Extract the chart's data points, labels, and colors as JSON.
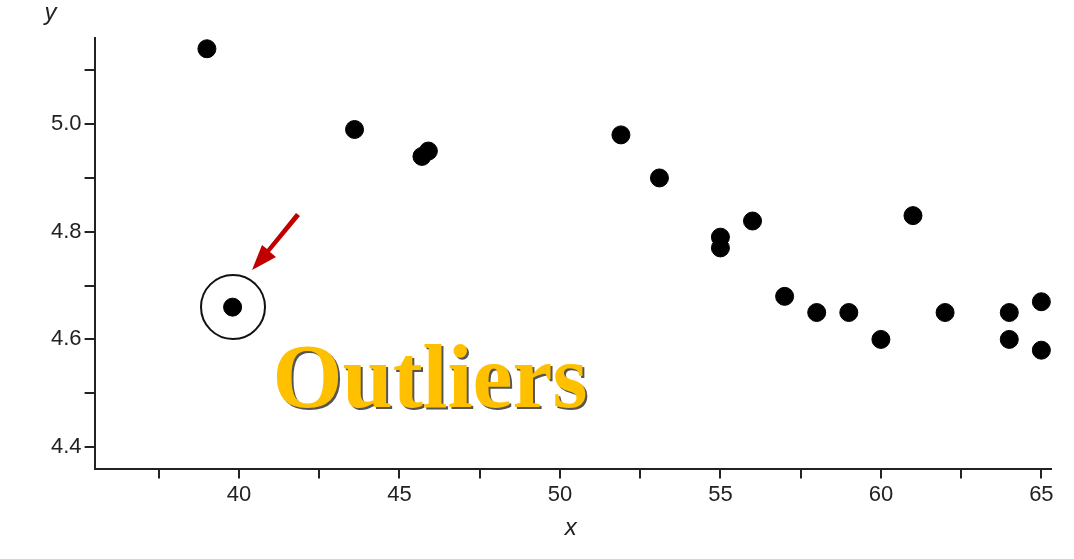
{
  "chart_data": {
    "type": "scatter",
    "xlabel": "x",
    "ylabel": "y",
    "x": [
      39,
      43.6,
      45.7,
      45.9,
      51.9,
      53.1,
      55,
      55,
      56,
      57,
      58,
      59,
      60,
      61,
      62,
      64,
      64,
      65,
      65,
      39.8
    ],
    "values": [
      5.14,
      4.99,
      4.94,
      4.95,
      4.98,
      4.9,
      4.79,
      4.77,
      4.82,
      4.68,
      4.65,
      4.65,
      4.6,
      4.83,
      4.65,
      4.65,
      4.6,
      4.67,
      4.58,
      4.66
    ],
    "color": "#000000",
    "marker": "circle",
    "grid": false,
    "xlim": [
      35.5,
      65.3
    ],
    "ylim": [
      4.36,
      5.16
    ],
    "xticks": [
      {
        "value": 37.5,
        "label": null
      },
      40,
      {
        "value": 42.5,
        "label": null
      },
      45,
      {
        "value": 47.5,
        "label": null
      },
      50,
      {
        "value": 52.5,
        "label": null
      },
      55,
      {
        "value": 57.5,
        "label": null
      },
      60,
      {
        "value": 62.5,
        "label": null
      },
      65
    ],
    "yticks": [
      {
        "value": 4.4,
        "label": "4.4"
      },
      {
        "value": 4.5,
        "label": null
      },
      {
        "value": 4.6,
        "label": "4.6"
      },
      {
        "value": 4.7,
        "label": null
      },
      {
        "value": 4.8,
        "label": "4.8"
      },
      {
        "value": 4.9,
        "label": null
      },
      {
        "value": 5.0,
        "label": "5.0"
      },
      {
        "value": 5.1,
        "label": null
      }
    ],
    "annotations": [
      {
        "text": "Outliers",
        "x": 39.8,
        "y": 4.66
      }
    ]
  }
}
